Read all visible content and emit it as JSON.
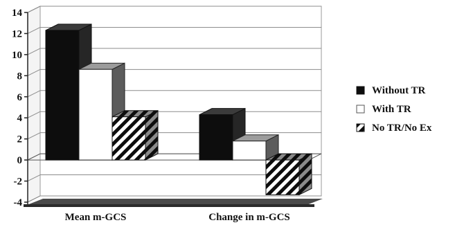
{
  "chart_data": {
    "type": "bar",
    "style": "3d-clustered-column",
    "categories": [
      "Mean m-GCS",
      "Change in m-GCS"
    ],
    "series": [
      {
        "name": "Without TR",
        "values": [
          12.3,
          4.3
        ],
        "color": "#0d0d0d",
        "pattern": "solid"
      },
      {
        "name": "With TR",
        "values": [
          8.6,
          1.8
        ],
        "color": "#ffffff",
        "pattern": "solid"
      },
      {
        "name": "No TR/No Ex",
        "values": [
          4.1,
          -3.3
        ],
        "color": "#0d0d0d",
        "pattern": "diagonal-stripes"
      }
    ],
    "ylim": [
      -4,
      14
    ],
    "yticks": [
      "14",
      "12",
      "10",
      "8",
      "6",
      "4",
      "2",
      "0",
      "-2",
      "-4"
    ],
    "grid": true,
    "legend_position": "right",
    "title": "",
    "xlabel": "",
    "ylabel": ""
  }
}
